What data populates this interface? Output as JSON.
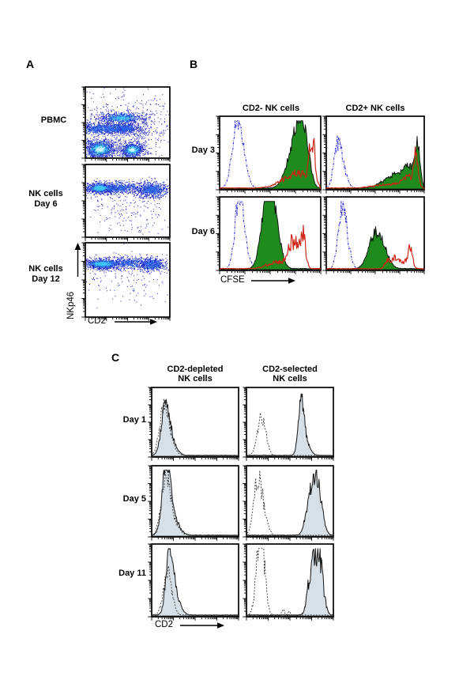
{
  "figure": {
    "background": "#ffffff",
    "description_labels": {
      "panel_letters": [
        "A",
        "B",
        "C"
      ]
    }
  },
  "chart_data": {
    "type": "flow-cytometry-multipanel",
    "panels": {
      "A": {
        "panel_letter": "A",
        "plot_type": "pseudocolor-density-scatter",
        "xlabel": "CD2",
        "ylabel": "NKp46",
        "x_scale": "log-4-decades",
        "y_scale": "log-4-decades",
        "density_colors": [
          "#1b1bc6",
          "#2a6ae8",
          "#3fc6f2",
          "#ccfdff"
        ],
        "rows": [
          {
            "label_lines": [
              "PBMC"
            ],
            "clusters": [
              {
                "cx": 0.35,
                "cy": 0.55,
                "sx": 0.3,
                "sy": 0.25,
                "n": 320,
                "tiers": 1
              },
              {
                "cx": 0.42,
                "cy": 0.57,
                "sx": 0.16,
                "sy": 0.045,
                "n": 450,
                "tiers": 3
              },
              {
                "cx": 0.22,
                "cy": 0.42,
                "sx": 0.2,
                "sy": 0.05,
                "n": 700,
                "tiers": 2
              },
              {
                "cx": 0.48,
                "cy": 0.42,
                "sx": 0.12,
                "sy": 0.05,
                "n": 320,
                "tiers": 2
              },
              {
                "cx": 0.17,
                "cy": 0.13,
                "sx": 0.11,
                "sy": 0.075,
                "n": 1000,
                "tiers": 4
              },
              {
                "cx": 0.55,
                "cy": 0.12,
                "sx": 0.08,
                "sy": 0.06,
                "n": 620,
                "tiers": 4
              },
              {
                "cx": 0.62,
                "cy": 0.3,
                "sx": 0.1,
                "sy": 0.2,
                "n": 150,
                "tiers": 1
              },
              {
                "cx": 0.8,
                "cy": 0.45,
                "sx": 0.12,
                "sy": 0.3,
                "n": 90,
                "tiers": 1
              }
            ]
          },
          {
            "label_lines": [
              "NK cells",
              "Day 6"
            ],
            "clusters": [
              {
                "cx": 0.17,
                "cy": 0.68,
                "sx": 0.1,
                "sy": 0.04,
                "n": 700,
                "tiers": 3
              },
              {
                "cx": 0.42,
                "cy": 0.68,
                "sx": 0.16,
                "sy": 0.045,
                "n": 420,
                "tiers": 2
              },
              {
                "cx": 0.78,
                "cy": 0.65,
                "sx": 0.11,
                "sy": 0.06,
                "n": 560,
                "tiers": 2
              },
              {
                "cx": 0.45,
                "cy": 0.45,
                "sx": 0.28,
                "sy": 0.12,
                "n": 130,
                "tiers": 1
              },
              {
                "cx": 0.5,
                "cy": 0.2,
                "sx": 0.2,
                "sy": 0.12,
                "n": 60,
                "tiers": 1
              }
            ]
          },
          {
            "label_lines": [
              "NK cells",
              "Day 12"
            ],
            "clusters": [
              {
                "cx": 0.2,
                "cy": 0.72,
                "sx": 0.12,
                "sy": 0.04,
                "n": 750,
                "tiers": 3
              },
              {
                "cx": 0.5,
                "cy": 0.73,
                "sx": 0.16,
                "sy": 0.045,
                "n": 360,
                "tiers": 2
              },
              {
                "cx": 0.78,
                "cy": 0.71,
                "sx": 0.1,
                "sy": 0.05,
                "n": 420,
                "tiers": 2
              },
              {
                "cx": 0.45,
                "cy": 0.45,
                "sx": 0.25,
                "sy": 0.15,
                "n": 110,
                "tiers": 1
              }
            ]
          }
        ]
      },
      "B": {
        "panel_letter": "B",
        "plot_type": "histogram-overlay",
        "xlabel": "CFSE",
        "column_headers": [
          "CD2- NK cells",
          "CD2+ NK cells"
        ],
        "row_labels": [
          "Day 3",
          "Day 6"
        ],
        "series_styles": {
          "blue-dashed": {
            "color": "#3434d4",
            "style": "dashdot",
            "width": 1.05
          },
          "green-filled": {
            "fill": "#1f8b1f",
            "stroke": "#0d0d0d",
            "style": "filled",
            "width": 0.9
          },
          "red-line": {
            "color": "#cc2414",
            "style": "solid",
            "width": 1.15
          }
        },
        "plots": [
          {
            "row": "Day 3",
            "column": "CD2- NK cells",
            "series": [
              {
                "name": "blue-dashed",
                "noise": 0.16,
                "peaks": [
                  {
                    "c": 0.17,
                    "h": 0.86,
                    "w": 0.05
                  },
                  {
                    "c": 0.23,
                    "h": 0.2,
                    "w": 0.05
                  }
                ]
              },
              {
                "name": "green-filled",
                "noise": 0.14,
                "peaks": [
                  {
                    "c": 0.8,
                    "h": 0.72,
                    "w": 0.055
                  },
                  {
                    "c": 0.72,
                    "h": 0.4,
                    "w": 0.07
                  },
                  {
                    "c": 0.87,
                    "h": 0.3,
                    "w": 0.04
                  }
                ]
              },
              {
                "name": "red-line",
                "noise": 0.3,
                "peaks": [
                  {
                    "c": 0.92,
                    "h": 0.62,
                    "w": 0.028
                  },
                  {
                    "c": 0.8,
                    "h": 0.18,
                    "w": 0.08
                  },
                  {
                    "c": 0.65,
                    "h": 0.1,
                    "w": 0.1
                  }
                ]
              }
            ]
          },
          {
            "row": "Day 3",
            "column": "CD2+ NK cells",
            "series": [
              {
                "name": "blue-dashed",
                "noise": 0.22,
                "peaks": [
                  {
                    "c": 0.14,
                    "h": 0.4,
                    "w": 0.05
                  },
                  {
                    "c": 0.1,
                    "h": 0.28,
                    "w": 0.035
                  }
                ]
              },
              {
                "name": "green-filled",
                "noise": 0.18,
                "peaks": [
                  {
                    "c": 0.94,
                    "h": 0.55,
                    "w": 0.025
                  },
                  {
                    "c": 0.86,
                    "h": 0.25,
                    "w": 0.05
                  },
                  {
                    "c": 0.74,
                    "h": 0.18,
                    "w": 0.08
                  },
                  {
                    "c": 0.6,
                    "h": 0.08,
                    "w": 0.08
                  }
                ]
              },
              {
                "name": "red-line",
                "noise": 0.28,
                "peaks": [
                  {
                    "c": 0.92,
                    "h": 0.46,
                    "w": 0.022
                  },
                  {
                    "c": 0.84,
                    "h": 0.13,
                    "w": 0.06
                  },
                  {
                    "c": 0.65,
                    "h": 0.05,
                    "w": 0.15
                  }
                ]
              }
            ]
          },
          {
            "row": "Day 6",
            "column": "CD2- NK cells",
            "series": [
              {
                "name": "blue-dashed",
                "noise": 0.16,
                "peaks": [
                  {
                    "c": 0.19,
                    "h": 0.92,
                    "w": 0.042
                  },
                  {
                    "c": 0.24,
                    "h": 0.2,
                    "w": 0.05
                  }
                ]
              },
              {
                "name": "green-filled",
                "noise": 0.13,
                "peaks": [
                  {
                    "c": 0.5,
                    "h": 0.85,
                    "w": 0.055
                  },
                  {
                    "c": 0.44,
                    "h": 0.45,
                    "w": 0.05
                  },
                  {
                    "c": 0.57,
                    "h": 0.3,
                    "w": 0.05
                  }
                ]
              },
              {
                "name": "red-line",
                "noise": 0.3,
                "peaks": [
                  {
                    "c": 0.83,
                    "h": 0.45,
                    "w": 0.025
                  },
                  {
                    "c": 0.76,
                    "h": 0.3,
                    "w": 0.03
                  },
                  {
                    "c": 0.7,
                    "h": 0.26,
                    "w": 0.03
                  },
                  {
                    "c": 0.58,
                    "h": 0.1,
                    "w": 0.1
                  }
                ]
              }
            ]
          },
          {
            "row": "Day 6",
            "column": "CD2+ NK cells",
            "series": [
              {
                "name": "blue-dashed",
                "noise": 0.22,
                "peaks": [
                  {
                    "c": 0.18,
                    "h": 0.58,
                    "w": 0.045
                  },
                  {
                    "c": 0.14,
                    "h": 0.42,
                    "w": 0.035
                  }
                ]
              },
              {
                "name": "green-filled",
                "noise": 0.16,
                "peaks": [
                  {
                    "c": 0.55,
                    "h": 0.36,
                    "w": 0.07
                  },
                  {
                    "c": 0.47,
                    "h": 0.25,
                    "w": 0.06
                  }
                ]
              },
              {
                "name": "red-line",
                "noise": 0.3,
                "peaks": [
                  {
                    "c": 0.86,
                    "h": 0.26,
                    "w": 0.025
                  },
                  {
                    "c": 0.7,
                    "h": 0.13,
                    "w": 0.03
                  },
                  {
                    "c": 0.63,
                    "h": 0.11,
                    "w": 0.03
                  },
                  {
                    "c": 0.78,
                    "h": 0.1,
                    "w": 0.04
                  }
                ]
              }
            ]
          }
        ]
      },
      "C": {
        "panel_letter": "C",
        "plot_type": "histogram-overlay",
        "xlabel": "CD2",
        "column_headers_lines": [
          [
            "CD2-depleted",
            "NK cells"
          ],
          [
            "CD2-selected",
            "NK cells"
          ]
        ],
        "row_labels": [
          "Day 1",
          "Day 5",
          "Day 11"
        ],
        "series_styles": {
          "gray-filled": {
            "fill": "#d7e0e6",
            "stroke": "#141414",
            "style": "filled",
            "width": 1.0
          },
          "open-dashed": {
            "color": "#3d3d3d",
            "style": "dashed",
            "width": 0.9
          }
        },
        "plots": [
          {
            "row": "Day 1",
            "column": "CD2-depleted NK cells",
            "series": [
              {
                "name": "gray-filled",
                "noise": 0.15,
                "peaks": [
                  {
                    "c": 0.15,
                    "h": 0.62,
                    "w": 0.045
                  },
                  {
                    "c": 0.21,
                    "h": 0.25,
                    "w": 0.06
                  }
                ]
              },
              {
                "name": "open-dashed",
                "noise": 0.18,
                "peaks": [
                  {
                    "c": 0.13,
                    "h": 0.58,
                    "w": 0.05
                  },
                  {
                    "c": 0.19,
                    "h": 0.22,
                    "w": 0.06
                  }
                ]
              }
            ]
          },
          {
            "row": "Day 1",
            "column": "CD2-selected NK cells",
            "series": [
              {
                "name": "gray-filled",
                "noise": 0.14,
                "peaks": [
                  {
                    "c": 0.63,
                    "h": 0.72,
                    "w": 0.032
                  },
                  {
                    "c": 0.68,
                    "h": 0.2,
                    "w": 0.05
                  }
                ]
              },
              {
                "name": "open-dashed",
                "noise": 0.18,
                "peaks": [
                  {
                    "c": 0.17,
                    "h": 0.56,
                    "w": 0.048
                  }
                ]
              }
            ]
          },
          {
            "row": "Day 5",
            "column": "CD2-depleted NK cells",
            "series": [
              {
                "name": "gray-filled",
                "noise": 0.15,
                "peaks": [
                  {
                    "c": 0.16,
                    "h": 0.88,
                    "w": 0.045
                  },
                  {
                    "c": 0.23,
                    "h": 0.3,
                    "w": 0.07
                  }
                ]
              },
              {
                "name": "open-dashed",
                "noise": 0.2,
                "peaks": [
                  {
                    "c": 0.15,
                    "h": 0.68,
                    "w": 0.05
                  },
                  {
                    "c": 0.22,
                    "h": 0.25,
                    "w": 0.07
                  }
                ]
              }
            ]
          },
          {
            "row": "Day 5",
            "column": "CD2-selected NK cells",
            "series": [
              {
                "name": "gray-filled",
                "noise": 0.16,
                "peaks": [
                  {
                    "c": 0.78,
                    "h": 0.72,
                    "w": 0.05
                  },
                  {
                    "c": 0.85,
                    "h": 0.35,
                    "w": 0.045
                  },
                  {
                    "c": 0.7,
                    "h": 0.2,
                    "w": 0.04
                  }
                ]
              },
              {
                "name": "open-dashed",
                "noise": 0.24,
                "peaks": [
                  {
                    "c": 0.12,
                    "h": 0.66,
                    "w": 0.045
                  },
                  {
                    "c": 0.18,
                    "h": 0.3,
                    "w": 0.05
                  }
                ]
              }
            ]
          },
          {
            "row": "Day 11",
            "column": "CD2-depleted NK cells",
            "series": [
              {
                "name": "gray-filled",
                "noise": 0.16,
                "peaks": [
                  {
                    "c": 0.2,
                    "h": 0.84,
                    "w": 0.04
                  },
                  {
                    "c": 0.26,
                    "h": 0.28,
                    "w": 0.06
                  }
                ]
              },
              {
                "name": "open-dashed",
                "noise": 0.2,
                "peaks": [
                  {
                    "c": 0.18,
                    "h": 0.58,
                    "w": 0.05
                  }
                ]
              }
            ]
          },
          {
            "row": "Day 11",
            "column": "CD2-selected NK cells",
            "series": [
              {
                "name": "gray-filled",
                "noise": 0.22,
                "peaks": [
                  {
                    "c": 0.8,
                    "h": 0.68,
                    "w": 0.05
                  },
                  {
                    "c": 0.86,
                    "h": 0.4,
                    "w": 0.04
                  },
                  {
                    "c": 0.73,
                    "h": 0.3,
                    "w": 0.035
                  }
                ]
              },
              {
                "name": "open-dashed",
                "noise": 0.24,
                "peaks": [
                  {
                    "c": 0.17,
                    "h": 0.9,
                    "w": 0.04
                  },
                  {
                    "c": 0.13,
                    "h": 0.45,
                    "w": 0.04
                  },
                  {
                    "c": 0.42,
                    "h": 0.08,
                    "w": 0.015
                  },
                  {
                    "c": 0.49,
                    "h": 0.06,
                    "w": 0.012
                  }
                ]
              }
            ]
          }
        ]
      }
    }
  }
}
